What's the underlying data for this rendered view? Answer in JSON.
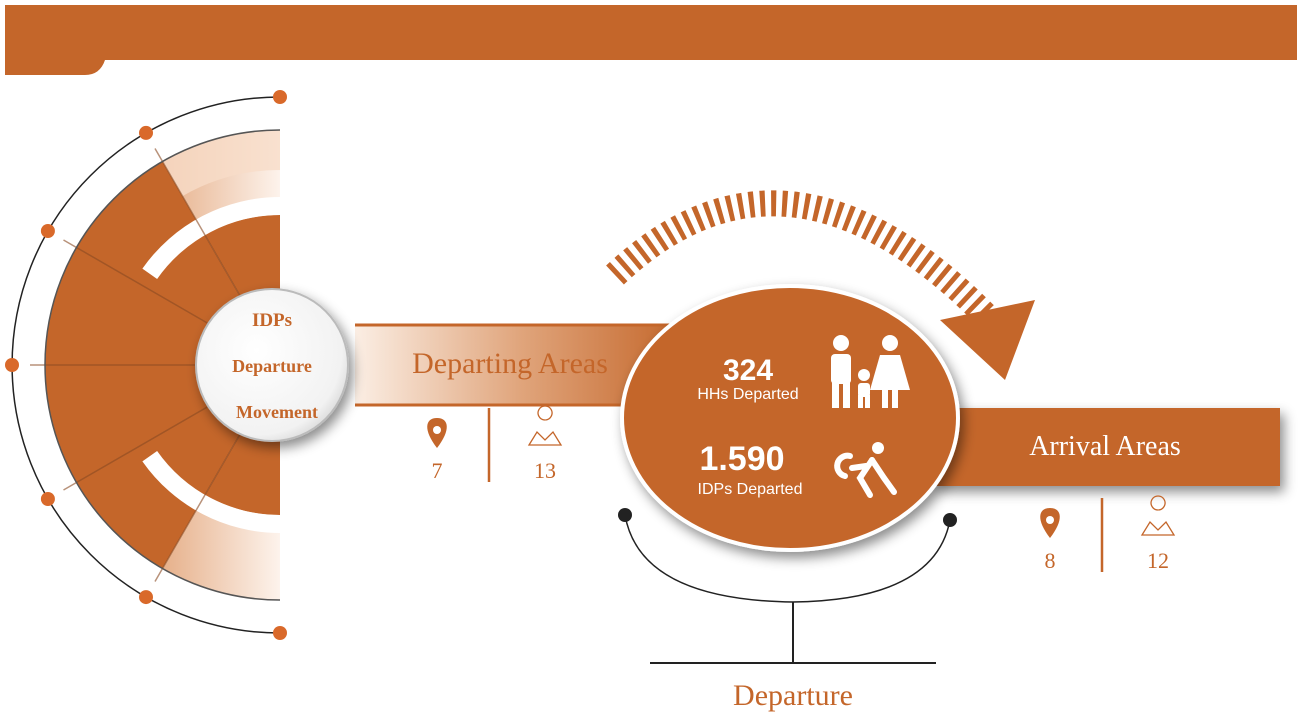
{
  "center_title": [
    "IDPs",
    "Departure",
    "Movement"
  ],
  "departing": {
    "label": "Departing Areas",
    "locations": 7,
    "areas": 13
  },
  "stats": [
    {
      "value": "324",
      "label": "HHs Departed"
    },
    {
      "value": "1.590",
      "label": "IDPs Departed"
    }
  ],
  "arrival": {
    "label": "Arrival Areas",
    "locations": 8,
    "areas": 12
  },
  "footer": "Departure"
}
